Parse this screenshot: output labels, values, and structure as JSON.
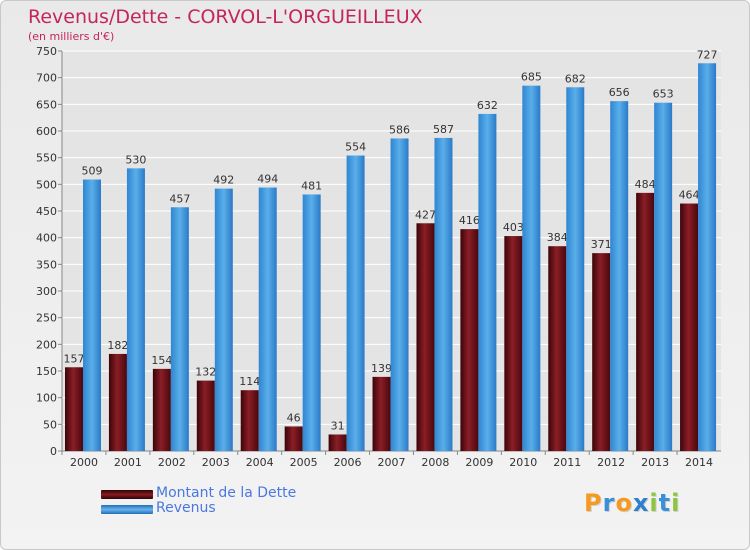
{
  "title": "Revenus/Dette - CORVOL-L'ORGUEILLEUX",
  "subtitle": "(en milliers d'€)",
  "chart_data": {
    "type": "bar",
    "categories": [
      "2000",
      "2001",
      "2002",
      "2003",
      "2004",
      "2005",
      "2006",
      "2007",
      "2008",
      "2009",
      "2010",
      "2011",
      "2012",
      "2013",
      "2014"
    ],
    "series": [
      {
        "name": "Montant de la Dette",
        "color": "#6e0f16",
        "values": [
          157,
          182,
          154,
          132,
          114,
          46,
          31,
          139,
          427,
          416,
          403,
          384,
          371,
          484,
          464
        ]
      },
      {
        "name": "Revenus",
        "color": "#3f95dc",
        "values": [
          509,
          530,
          457,
          492,
          494,
          481,
          554,
          586,
          587,
          632,
          685,
          682,
          656,
          653,
          727
        ]
      }
    ],
    "ylim": [
      0,
      750
    ],
    "yticks": [
      0,
      50,
      100,
      150,
      200,
      250,
      300,
      350,
      400,
      450,
      500,
      550,
      600,
      650,
      700,
      750
    ],
    "grid": true,
    "legend_position": "bottom-left"
  },
  "legend": [
    {
      "label": "Montant de la Dette",
      "color": "#6e0f16"
    },
    {
      "label": "Revenus",
      "color": "#3f95dc"
    }
  ],
  "logo": {
    "text": "Proxiti",
    "letters": [
      "P",
      "r",
      "o",
      "x",
      "i",
      "t",
      "i"
    ],
    "colors": [
      "#f59a1f",
      "#3a8fd8",
      "#f59a1f",
      "#2f7fd0",
      "#8cc63f",
      "#3a8fd8",
      "#8cc63f"
    ]
  }
}
